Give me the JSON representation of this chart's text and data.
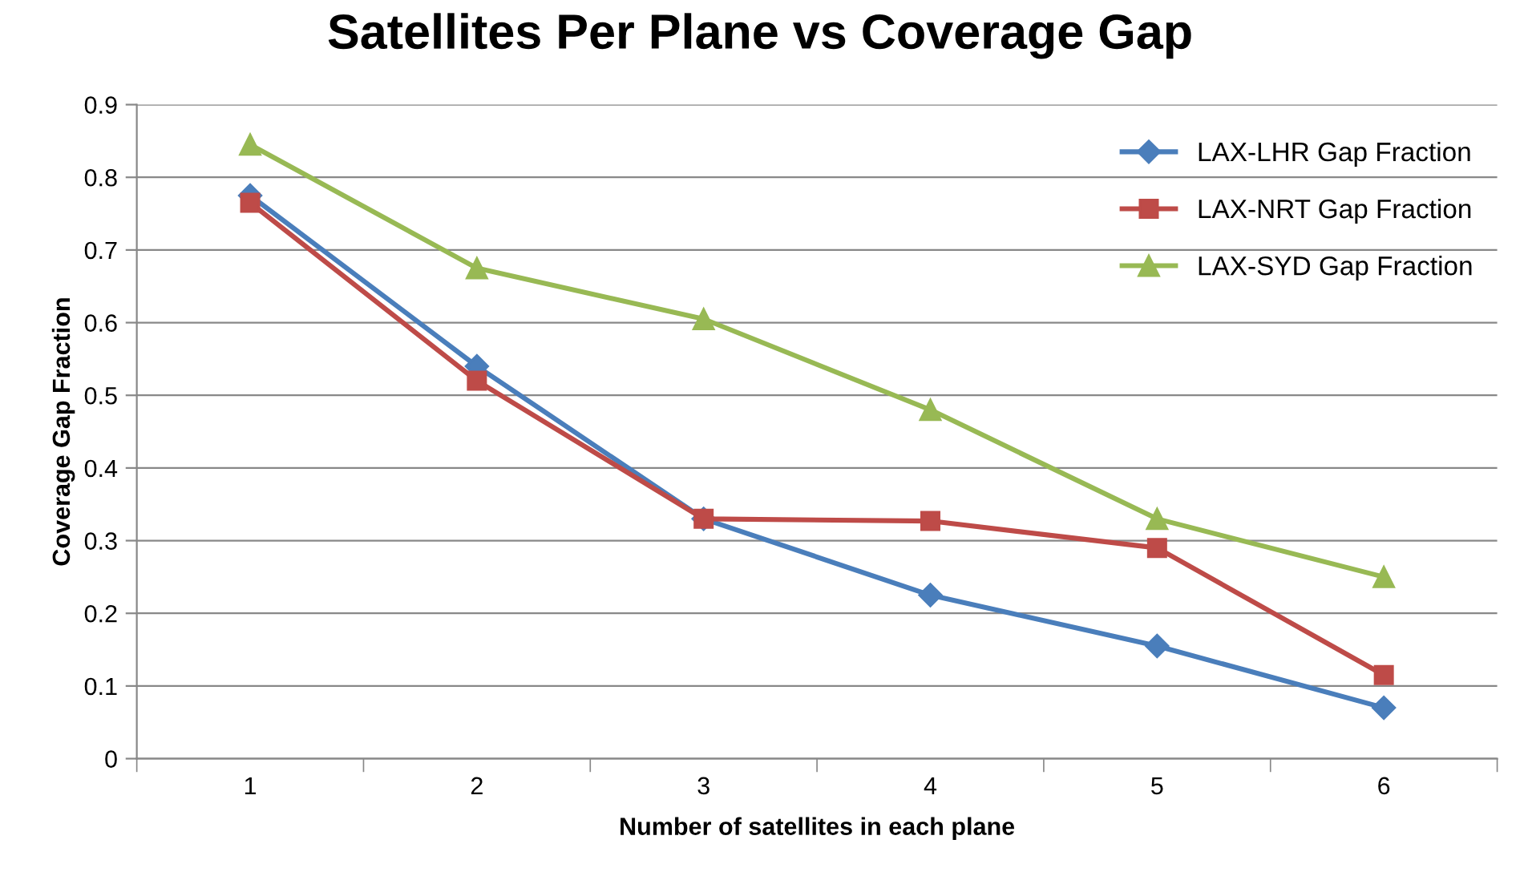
{
  "chart_data": {
    "type": "line",
    "title": "Satellites Per Plane vs Coverage Gap",
    "xlabel": "Number of satellites in each plane",
    "ylabel": "Coverage Gap Fraction",
    "categories": [
      "1",
      "2",
      "3",
      "4",
      "5",
      "6"
    ],
    "series": [
      {
        "name": "LAX-LHR Gap Fraction",
        "color": "#4a7ebb",
        "marker": "diamond",
        "values": [
          0.775,
          0.54,
          0.33,
          0.225,
          0.155,
          0.07
        ]
      },
      {
        "name": "LAX-NRT Gap Fraction",
        "color": "#be4b48",
        "marker": "square",
        "values": [
          0.765,
          0.52,
          0.33,
          0.327,
          0.29,
          0.115
        ]
      },
      {
        "name": "LAX-SYD Gap Fraction",
        "color": "#98b954",
        "marker": "triangle",
        "values": [
          0.845,
          0.675,
          0.605,
          0.48,
          0.33,
          0.25
        ]
      }
    ],
    "ylim": [
      0,
      0.9
    ],
    "yticks": [
      0,
      0.1,
      0.2,
      0.3,
      0.4,
      0.5,
      0.6,
      0.7,
      0.8,
      0.9
    ],
    "grid": "y",
    "legend": "top right"
  }
}
